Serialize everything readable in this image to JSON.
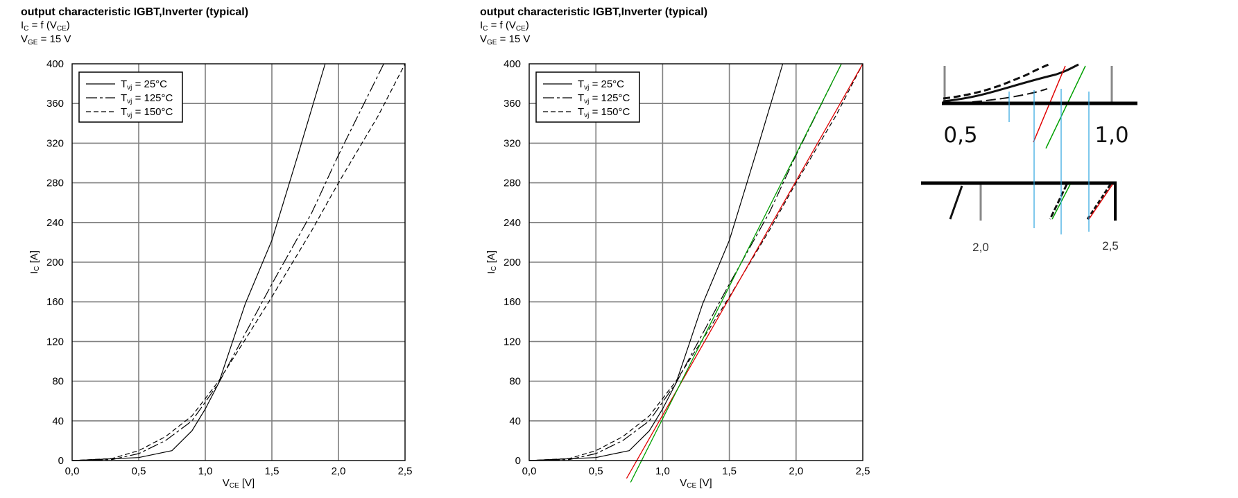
{
  "chart_data": [
    {
      "type": "line",
      "title": "output characteristic IGBT,Inverter (typical)",
      "formula": {
        "main": "I",
        "sub": "C",
        "mid": " = f (V",
        "sub2": "CE",
        "end": ")"
      },
      "condition": {
        "main": "V",
        "sub": "GE",
        "end": " = 15 V"
      },
      "xlabel": {
        "main": "V",
        "sub": "CE",
        "end": " [V]"
      },
      "ylabel": {
        "main": "I",
        "sub": "C",
        "end": " [A]"
      },
      "xlim": [
        0,
        2.5
      ],
      "ylim": [
        0,
        400
      ],
      "xticks": [
        "0,0",
        "0,5",
        "1,0",
        "1,5",
        "2,0",
        "2,5"
      ],
      "yticks": [
        "0",
        "40",
        "80",
        "120",
        "160",
        "200",
        "240",
        "280",
        "320",
        "360",
        "400"
      ],
      "grid": true,
      "legend_position": "top-left",
      "series": [
        {
          "name": "T = 25°C",
          "sub": "vj",
          "label": " = 25°C",
          "style": "solid",
          "points": [
            [
              0,
              0
            ],
            [
              0.5,
              3
            ],
            [
              0.75,
              10
            ],
            [
              0.9,
              30
            ],
            [
              1.0,
              52
            ],
            [
              1.1,
              78
            ],
            [
              1.2,
              118
            ],
            [
              1.3,
              158
            ],
            [
              1.5,
              222
            ],
            [
              1.7,
              310
            ],
            [
              1.9,
              400
            ]
          ]
        },
        {
          "name": "T = 125°C",
          "sub": "vj",
          "label": " = 125°C",
          "style": "longdash",
          "points": [
            [
              0,
              0
            ],
            [
              0.3,
              1
            ],
            [
              0.5,
              7
            ],
            [
              0.7,
              20
            ],
            [
              0.9,
              40
            ],
            [
              1.1,
              78
            ],
            [
              1.3,
              128
            ],
            [
              1.5,
              178
            ],
            [
              1.8,
              250
            ],
            [
              2.0,
              308
            ],
            [
              2.34,
              400
            ]
          ]
        },
        {
          "name": "T = 150°C",
          "sub": "vj",
          "label": " = 150°C",
          "style": "shortdash",
          "points": [
            [
              0,
              0
            ],
            [
              0.3,
              2
            ],
            [
              0.5,
              10
            ],
            [
              0.7,
              24
            ],
            [
              0.9,
              45
            ],
            [
              1.1,
              80
            ],
            [
              1.3,
              122
            ],
            [
              1.5,
              165
            ],
            [
              1.8,
              232
            ],
            [
              2.0,
              280
            ],
            [
              2.3,
              348
            ],
            [
              2.5,
              400
            ]
          ]
        }
      ]
    },
    {
      "type": "line",
      "title": "output characteristic IGBT,Inverter (typical)",
      "formula": {
        "main": "I",
        "sub": "C",
        "mid": " = f (V",
        "sub2": "CE",
        "end": ")"
      },
      "condition": {
        "main": "V",
        "sub": "GE",
        "end": " = 15 V"
      },
      "xlabel": {
        "main": "V",
        "sub": "CE",
        "end": " [V]"
      },
      "ylabel": {
        "main": "I",
        "sub": "C",
        "end": " [A]"
      },
      "xlim": [
        0,
        2.5
      ],
      "ylim": [
        0,
        400
      ],
      "xticks": [
        "0,0",
        "0,5",
        "1,0",
        "1,5",
        "2,0",
        "2,5"
      ],
      "yticks": [
        "0",
        "40",
        "80",
        "120",
        "160",
        "200",
        "240",
        "280",
        "320",
        "360",
        "400"
      ],
      "grid": true,
      "legend_position": "top-left",
      "series": [
        {
          "name": "T = 25°C",
          "sub": "vj",
          "label": " = 25°C",
          "style": "solid",
          "points": [
            [
              0,
              0
            ],
            [
              0.5,
              3
            ],
            [
              0.75,
              10
            ],
            [
              0.9,
              30
            ],
            [
              1.0,
              52
            ],
            [
              1.1,
              78
            ],
            [
              1.2,
              118
            ],
            [
              1.3,
              158
            ],
            [
              1.5,
              222
            ],
            [
              1.7,
              310
            ],
            [
              1.9,
              400
            ]
          ]
        },
        {
          "name": "T = 125°C",
          "sub": "vj",
          "label": " = 125°C",
          "style": "longdash",
          "points": [
            [
              0,
              0
            ],
            [
              0.3,
              1
            ],
            [
              0.5,
              7
            ],
            [
              0.7,
              20
            ],
            [
              0.9,
              40
            ],
            [
              1.1,
              78
            ],
            [
              1.3,
              128
            ],
            [
              1.5,
              178
            ],
            [
              1.8,
              250
            ],
            [
              2.0,
              308
            ],
            [
              2.34,
              400
            ]
          ]
        },
        {
          "name": "T = 150°C",
          "sub": "vj",
          "label": " = 150°C",
          "style": "shortdash",
          "points": [
            [
              0,
              0
            ],
            [
              0.3,
              2
            ],
            [
              0.5,
              10
            ],
            [
              0.7,
              24
            ],
            [
              0.9,
              45
            ],
            [
              1.1,
              80
            ],
            [
              1.3,
              122
            ],
            [
              1.5,
              165
            ],
            [
              1.8,
              232
            ],
            [
              2.0,
              280
            ],
            [
              2.3,
              348
            ],
            [
              2.5,
              400
            ]
          ]
        }
      ],
      "fit_lines": [
        {
          "color": "#e00000",
          "from": [
            0.73,
            -18
          ],
          "to": [
            2.5,
            400
          ]
        },
        {
          "color": "#00a000",
          "from": [
            0.76,
            -22
          ],
          "to": [
            2.34,
            400
          ]
        }
      ]
    }
  ],
  "zoom_insets": {
    "top": {
      "labels": [
        "0,5",
        "1,0"
      ]
    },
    "bottom": {
      "labels": [
        "2,0",
        "2,5"
      ]
    },
    "colors": {
      "red": "#e00000",
      "green": "#00a000",
      "blue": "#2aa3e0"
    }
  }
}
